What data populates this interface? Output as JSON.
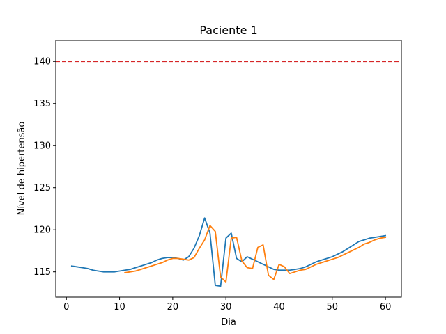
{
  "chart_data": {
    "type": "line",
    "title": "Paciente 1",
    "xlabel": "Dia",
    "ylabel": "Nível de hipertensão",
    "xlim": [
      -2.0,
      63.0
    ],
    "ylim": [
      112.0,
      142.5
    ],
    "xticks": [
      0,
      10,
      20,
      30,
      40,
      50,
      60
    ],
    "yticks": [
      115,
      120,
      125,
      130,
      135,
      140
    ],
    "grid": false,
    "reference_line": {
      "y": 140,
      "color": "#d62728",
      "style": "dashed"
    },
    "series": [
      {
        "color": "#1f77b4",
        "x": [
          1,
          2,
          3,
          4,
          5,
          6,
          7,
          8,
          9,
          10,
          11,
          12,
          13,
          14,
          15,
          16,
          17,
          18,
          19,
          20,
          21,
          22,
          23,
          24,
          25,
          26,
          27,
          28,
          29,
          30,
          31,
          32,
          33,
          34,
          35,
          36,
          37,
          38,
          39,
          40,
          41,
          42,
          43,
          44,
          45,
          46,
          47,
          48,
          49,
          50,
          51,
          52,
          53,
          54,
          55,
          56,
          57,
          58,
          59,
          60
        ],
        "y": [
          115.7,
          115.6,
          115.5,
          115.4,
          115.2,
          115.1,
          115.0,
          115.0,
          115.0,
          115.1,
          115.2,
          115.3,
          115.5,
          115.7,
          115.9,
          116.1,
          116.4,
          116.6,
          116.7,
          116.7,
          116.6,
          116.4,
          116.8,
          117.8,
          119.3,
          121.4,
          119.6,
          113.4,
          113.3,
          119.0,
          119.6,
          116.6,
          116.2,
          116.8,
          116.5,
          116.2,
          115.9,
          115.6,
          115.3,
          115.2,
          115.2,
          115.2,
          115.3,
          115.4,
          115.6,
          115.9,
          116.2,
          116.4,
          116.6,
          116.8,
          117.1,
          117.4,
          117.8,
          118.2,
          118.6,
          118.8,
          119.0,
          119.1,
          119.2,
          119.3
        ]
      },
      {
        "color": "#ff7f0e",
        "x": [
          11,
          12,
          13,
          14,
          15,
          16,
          17,
          18,
          19,
          20,
          21,
          22,
          23,
          24,
          25,
          26,
          27,
          28,
          29,
          30,
          31,
          32,
          33,
          34,
          35,
          36,
          37,
          38,
          39,
          40,
          41,
          42,
          43,
          44,
          45,
          46,
          47,
          48,
          49,
          50,
          51,
          52,
          53,
          54,
          55,
          56,
          57,
          58,
          59,
          60
        ],
        "y": [
          114.9,
          115.0,
          115.1,
          115.3,
          115.5,
          115.7,
          115.9,
          116.1,
          116.4,
          116.6,
          116.6,
          116.5,
          116.4,
          116.7,
          117.8,
          118.8,
          120.5,
          119.8,
          114.4,
          113.8,
          119.0,
          119.1,
          116.3,
          115.5,
          115.4,
          117.9,
          118.2,
          114.6,
          114.1,
          115.9,
          115.6,
          114.8,
          115.0,
          115.2,
          115.3,
          115.6,
          115.9,
          116.1,
          116.3,
          116.5,
          116.7,
          117.0,
          117.3,
          117.6,
          117.9,
          118.3,
          118.5,
          118.8,
          119.0,
          119.1
        ]
      }
    ]
  }
}
